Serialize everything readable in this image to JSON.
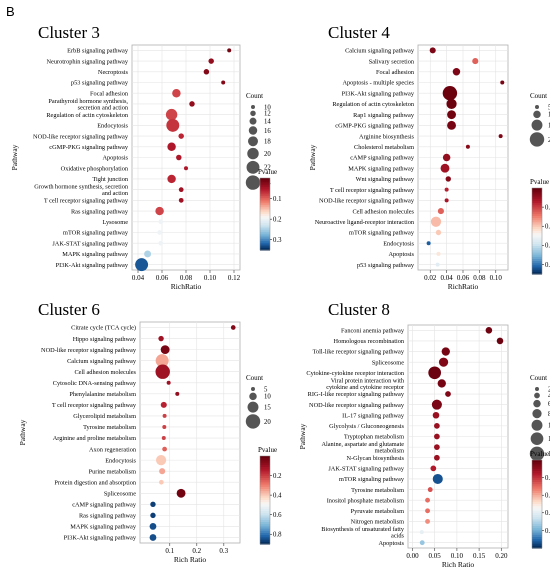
{
  "figure": {
    "panel_letter": "B"
  },
  "legend_text": {
    "count_title": "Count",
    "pvalue_title": "Pvalue"
  },
  "chart_data": [
    {
      "type": "scatter",
      "title": "Cluster 3",
      "xlabel": "RichRatio",
      "ylabel": "Pathway",
      "xlim": [
        0.035,
        0.125
      ],
      "xticks": [
        0.04,
        0.06,
        0.08,
        0.1,
        0.12
      ],
      "xtick_labels": [
        "0.04",
        "0.06",
        "0.08",
        "0.10",
        "0.12"
      ],
      "grid": true,
      "categories": [
        [
          "ErbB signaling pathway"
        ],
        [
          "Neurotrophin signaling pathway"
        ],
        [
          "Necroptosis"
        ],
        [
          "p53 signaling pathway"
        ],
        [
          "Focal adhesion"
        ],
        [
          "Parathyroid hormone synthesis,",
          "secretion and action"
        ],
        [
          "Regulation of actin cytoskeleton"
        ],
        [
          "Endocytosis"
        ],
        [
          "NOD-like receptor signaling pathway"
        ],
        [
          "cGMP-PKG signaling pathway"
        ],
        [
          "Apoptosis"
        ],
        [
          "Oxidative phosphorylation"
        ],
        [
          "Tight junction"
        ],
        [
          "Growth hormone synthesis, secretion",
          "and action"
        ],
        [
          "T cell receptor signaling pathway"
        ],
        [
          "Ras signaling pathway"
        ],
        [
          "Lysosome"
        ],
        [
          "mTOR signaling pathway"
        ],
        [
          "JAK-STAT signaling pathway"
        ],
        [
          "MAPK signaling pathway"
        ],
        [
          "PI3K-Akt signaling pathway"
        ]
      ],
      "x": [
        0.116,
        0.101,
        0.097,
        0.111,
        0.072,
        0.085,
        0.068,
        0.069,
        0.076,
        0.068,
        0.074,
        0.08,
        0.068,
        0.076,
        0.076,
        0.058,
        0.059,
        0.058,
        0.059,
        0.048,
        0.043
      ],
      "size": [
        10,
        12,
        12,
        10,
        16,
        12,
        20,
        22,
        12,
        16,
        12,
        10,
        16,
        11,
        11,
        16,
        11,
        11,
        11,
        14,
        22
      ],
      "pvalue": [
        0.01,
        0.03,
        0.02,
        0.02,
        0.08,
        0.03,
        0.08,
        0.07,
        0.06,
        0.05,
        0.05,
        0.05,
        0.06,
        0.04,
        0.04,
        0.08,
        0.2,
        0.2,
        0.2,
        0.25,
        0.33
      ],
      "legend": {
        "size_title": "Count",
        "sizes": [
          10,
          12,
          14,
          16,
          18,
          20,
          22,
          24
        ],
        "pvalue_title": "Pvalue",
        "pvalue_range": [
          0,
          0.35
        ],
        "pvalue_ticks": [
          0.1,
          0.2,
          0.3
        ],
        "pvalue_tick_labels": [
          "0.1",
          "0.2",
          "0.3"
        ]
      }
    },
    {
      "type": "scatter",
      "title": "Cluster 4",
      "xlabel": "RichRatio",
      "ylabel": "Pathway",
      "xlim": [
        0.005,
        0.115
      ],
      "xticks": [
        0.02,
        0.04,
        0.06,
        0.08,
        0.1
      ],
      "xtick_labels": [
        "0.02",
        "0.04",
        "0.06",
        "0.08",
        "0.10"
      ],
      "grid": true,
      "categories": [
        [
          "Calcium signaling pathway"
        ],
        [
          "Salivary secretion"
        ],
        [
          "Focal adhesion"
        ],
        [
          "Apoptosis - multiple species"
        ],
        [
          "PI3K-Akt signaling pathway"
        ],
        [
          "Regulation of actin cytoskeleton"
        ],
        [
          "Rap1 signaling pathway"
        ],
        [
          "cGMP-PKG signaling pathway"
        ],
        [
          "Arginine biosynthesis"
        ],
        [
          "Cholesterol metabolism"
        ],
        [
          "cAMP signaling pathway"
        ],
        [
          "MAPK signaling pathway"
        ],
        [
          "Wnt signaling pathway"
        ],
        [
          "T cell receptor signaling pathway"
        ],
        [
          "NOD-like receptor signaling pathway"
        ],
        [
          "Cell adhesion molecules"
        ],
        [
          "Neuroactive ligand-receptor interaction"
        ],
        [
          "mTOR signaling pathway"
        ],
        [
          "Endocytosis"
        ],
        [
          "Apoptosis"
        ],
        [
          "p53 signaling pathway"
        ]
      ],
      "x": [
        0.023,
        0.075,
        0.052,
        0.108,
        0.044,
        0.046,
        0.046,
        0.046,
        0.106,
        0.066,
        0.04,
        0.038,
        0.042,
        0.04,
        0.04,
        0.033,
        0.027,
        0.03,
        0.018,
        0.03,
        0.029
      ],
      "size": [
        8,
        8,
        10,
        4,
        20,
        14,
        12,
        12,
        4,
        5,
        10,
        12,
        7,
        5,
        5,
        8,
        14,
        7,
        4,
        5,
        4
      ],
      "pvalue": [
        0.04,
        0.25,
        0.04,
        0.03,
        0.01,
        0.01,
        0.02,
        0.03,
        0.04,
        0.06,
        0.08,
        0.1,
        0.05,
        0.15,
        0.12,
        0.25,
        0.38,
        0.4,
        0.84,
        0.45,
        0.55
      ],
      "legend": {
        "size_title": "Count",
        "sizes": [
          5,
          10,
          15,
          20
        ],
        "pvalue_title": "Pvalue",
        "pvalue_range": [
          0,
          0.9
        ],
        "pvalue_ticks": [
          0.2,
          0.4,
          0.6,
          0.8
        ],
        "pvalue_tick_labels": [
          "0.2",
          "0.4",
          "0.6",
          "0.8"
        ]
      }
    },
    {
      "type": "scatter",
      "title": "Cluster 6",
      "xlabel": "Rich Ratio",
      "ylabel": "Pathway",
      "xlim": [
        -0.01,
        0.36
      ],
      "xticks": [
        0.1,
        0.2,
        0.3
      ],
      "xtick_labels": [
        "0.1",
        "0.2",
        "0.3"
      ],
      "grid": true,
      "categories": [
        [
          "Citrate cycle (TCA cycle)"
        ],
        [
          "Hippo signaling pathway"
        ],
        [
          "NOD-like receptor signaling pathway"
        ],
        [
          "Calcium signaling pathway"
        ],
        [
          "Cell adhesion molecules"
        ],
        [
          "Cytosolic DNA-sensing pathway"
        ],
        [
          "Phenylalanine metabolism"
        ],
        [
          "T cell receptor signaling pathway"
        ],
        [
          "Glycerolipid metabolism"
        ],
        [
          "Tyrosine metabolism"
        ],
        [
          "Arginine and proline metabolism"
        ],
        [
          "Axon regeneration"
        ],
        [
          "Endocytosis"
        ],
        [
          "Purine metabolism"
        ],
        [
          "Protein digestion and absorption"
        ],
        [
          "Spliceosome"
        ],
        [
          "cAMP signaling pathway"
        ],
        [
          "Ras signaling pathway"
        ],
        [
          "MAPK signaling pathway"
        ],
        [
          "PI3K-Akt signaling pathway"
        ]
      ],
      "x": [
        0.335,
        0.068,
        0.083,
        0.072,
        0.074,
        0.096,
        0.128,
        0.078,
        0.081,
        0.08,
        0.078,
        0.081,
        0.068,
        0.072,
        0.069,
        0.142,
        0.038,
        0.038,
        0.038,
        0.038
      ],
      "size": [
        6,
        7,
        12,
        18,
        20,
        4,
        4,
        8,
        5,
        5,
        5,
        6,
        14,
        8,
        6,
        12,
        7,
        7,
        9,
        9
      ],
      "pvalue": [
        0.05,
        0.1,
        0.03,
        0.35,
        0.1,
        0.1,
        0.08,
        0.15,
        0.2,
        0.2,
        0.2,
        0.25,
        0.4,
        0.35,
        0.4,
        0.02,
        0.88,
        0.88,
        0.86,
        0.86
      ],
      "legend": {
        "size_title": "Count",
        "sizes": [
          5,
          10,
          15,
          20
        ],
        "pvalue_title": "Pvalue",
        "pvalue_range": [
          0,
          0.9
        ],
        "pvalue_ticks": [
          0.2,
          0.4,
          0.6,
          0.8
        ],
        "pvalue_tick_labels": [
          "0.2",
          "0.4",
          "0.6",
          "0.8"
        ]
      }
    },
    {
      "type": "scatter",
      "title": "Cluster 8",
      "xlabel": "Rich Ratio",
      "ylabel": "Pathway",
      "xlim": [
        -0.01,
        0.215
      ],
      "xticks": [
        0.0,
        0.05,
        0.1,
        0.15,
        0.2
      ],
      "xtick_labels": [
        "0.00",
        "0.05",
        "0.10",
        "0.15",
        "0.20"
      ],
      "grid": true,
      "categories": [
        [
          "Fanconi anemia pathway"
        ],
        [
          "Homologous recombination"
        ],
        [
          "Toll-like receptor signaling pathway"
        ],
        [
          "Spliceosome"
        ],
        [
          "Cytokine-cytokine receptor interaction"
        ],
        [
          "Viral protein interaction with",
          "cytokine and cytokine receptor"
        ],
        [
          "RIG-I-like receptor signaling pathway"
        ],
        [
          "NOD-like receptor signaling pathway"
        ],
        [
          "IL-17 signaling pathway"
        ],
        [
          "Glycolysis / Gluconeogenesis"
        ],
        [
          "Tryptophan metabolism"
        ],
        [
          "Alanine, aspartate and glutamate",
          "metabolism"
        ],
        [
          "N-Glycan biosynthesis"
        ],
        [
          "JAK-STAT signaling pathway"
        ],
        [
          "mTOR signaling pathway"
        ],
        [
          "Tyrosine metabolism"
        ],
        [
          "Inositol phosphate metabolism"
        ],
        [
          "Pyruvate metabolism"
        ],
        [
          "Nitrogen metabolism"
        ],
        [
          "Biosynthesis of unsaturated fatty",
          "acids"
        ],
        [
          "Apoptosis"
        ]
      ],
      "x": [
        0.172,
        0.197,
        0.075,
        0.07,
        0.05,
        0.066,
        0.08,
        0.055,
        0.053,
        0.055,
        0.055,
        0.055,
        0.055,
        0.047,
        0.057,
        0.04,
        0.034,
        0.034,
        0.034,
        0.021,
        0.022
      ],
      "size": [
        5,
        5,
        7,
        8,
        12,
        7,
        4,
        9,
        5,
        4,
        4,
        4,
        4,
        4,
        9,
        3,
        3,
        3,
        3,
        2,
        3
      ],
      "pvalue": [
        0.02,
        0.01,
        0.03,
        0.05,
        0.01,
        0.03,
        0.05,
        0.04,
        0.1,
        0.1,
        0.1,
        0.1,
        0.1,
        0.15,
        0.95,
        0.25,
        0.3,
        0.3,
        0.35,
        0.6,
        0.75
      ],
      "legend": {
        "size_title": "Count",
        "sizes": [
          2,
          4,
          6,
          8,
          10,
          12,
          14
        ],
        "pvalue_title": "Pvalue",
        "pvalue_range": [
          0,
          1.0
        ],
        "pvalue_ticks": [
          0.2,
          0.4,
          0.6,
          0.8
        ],
        "pvalue_tick_labels": [
          "0.2",
          "0.4",
          "0.6",
          "0.8"
        ]
      }
    }
  ]
}
